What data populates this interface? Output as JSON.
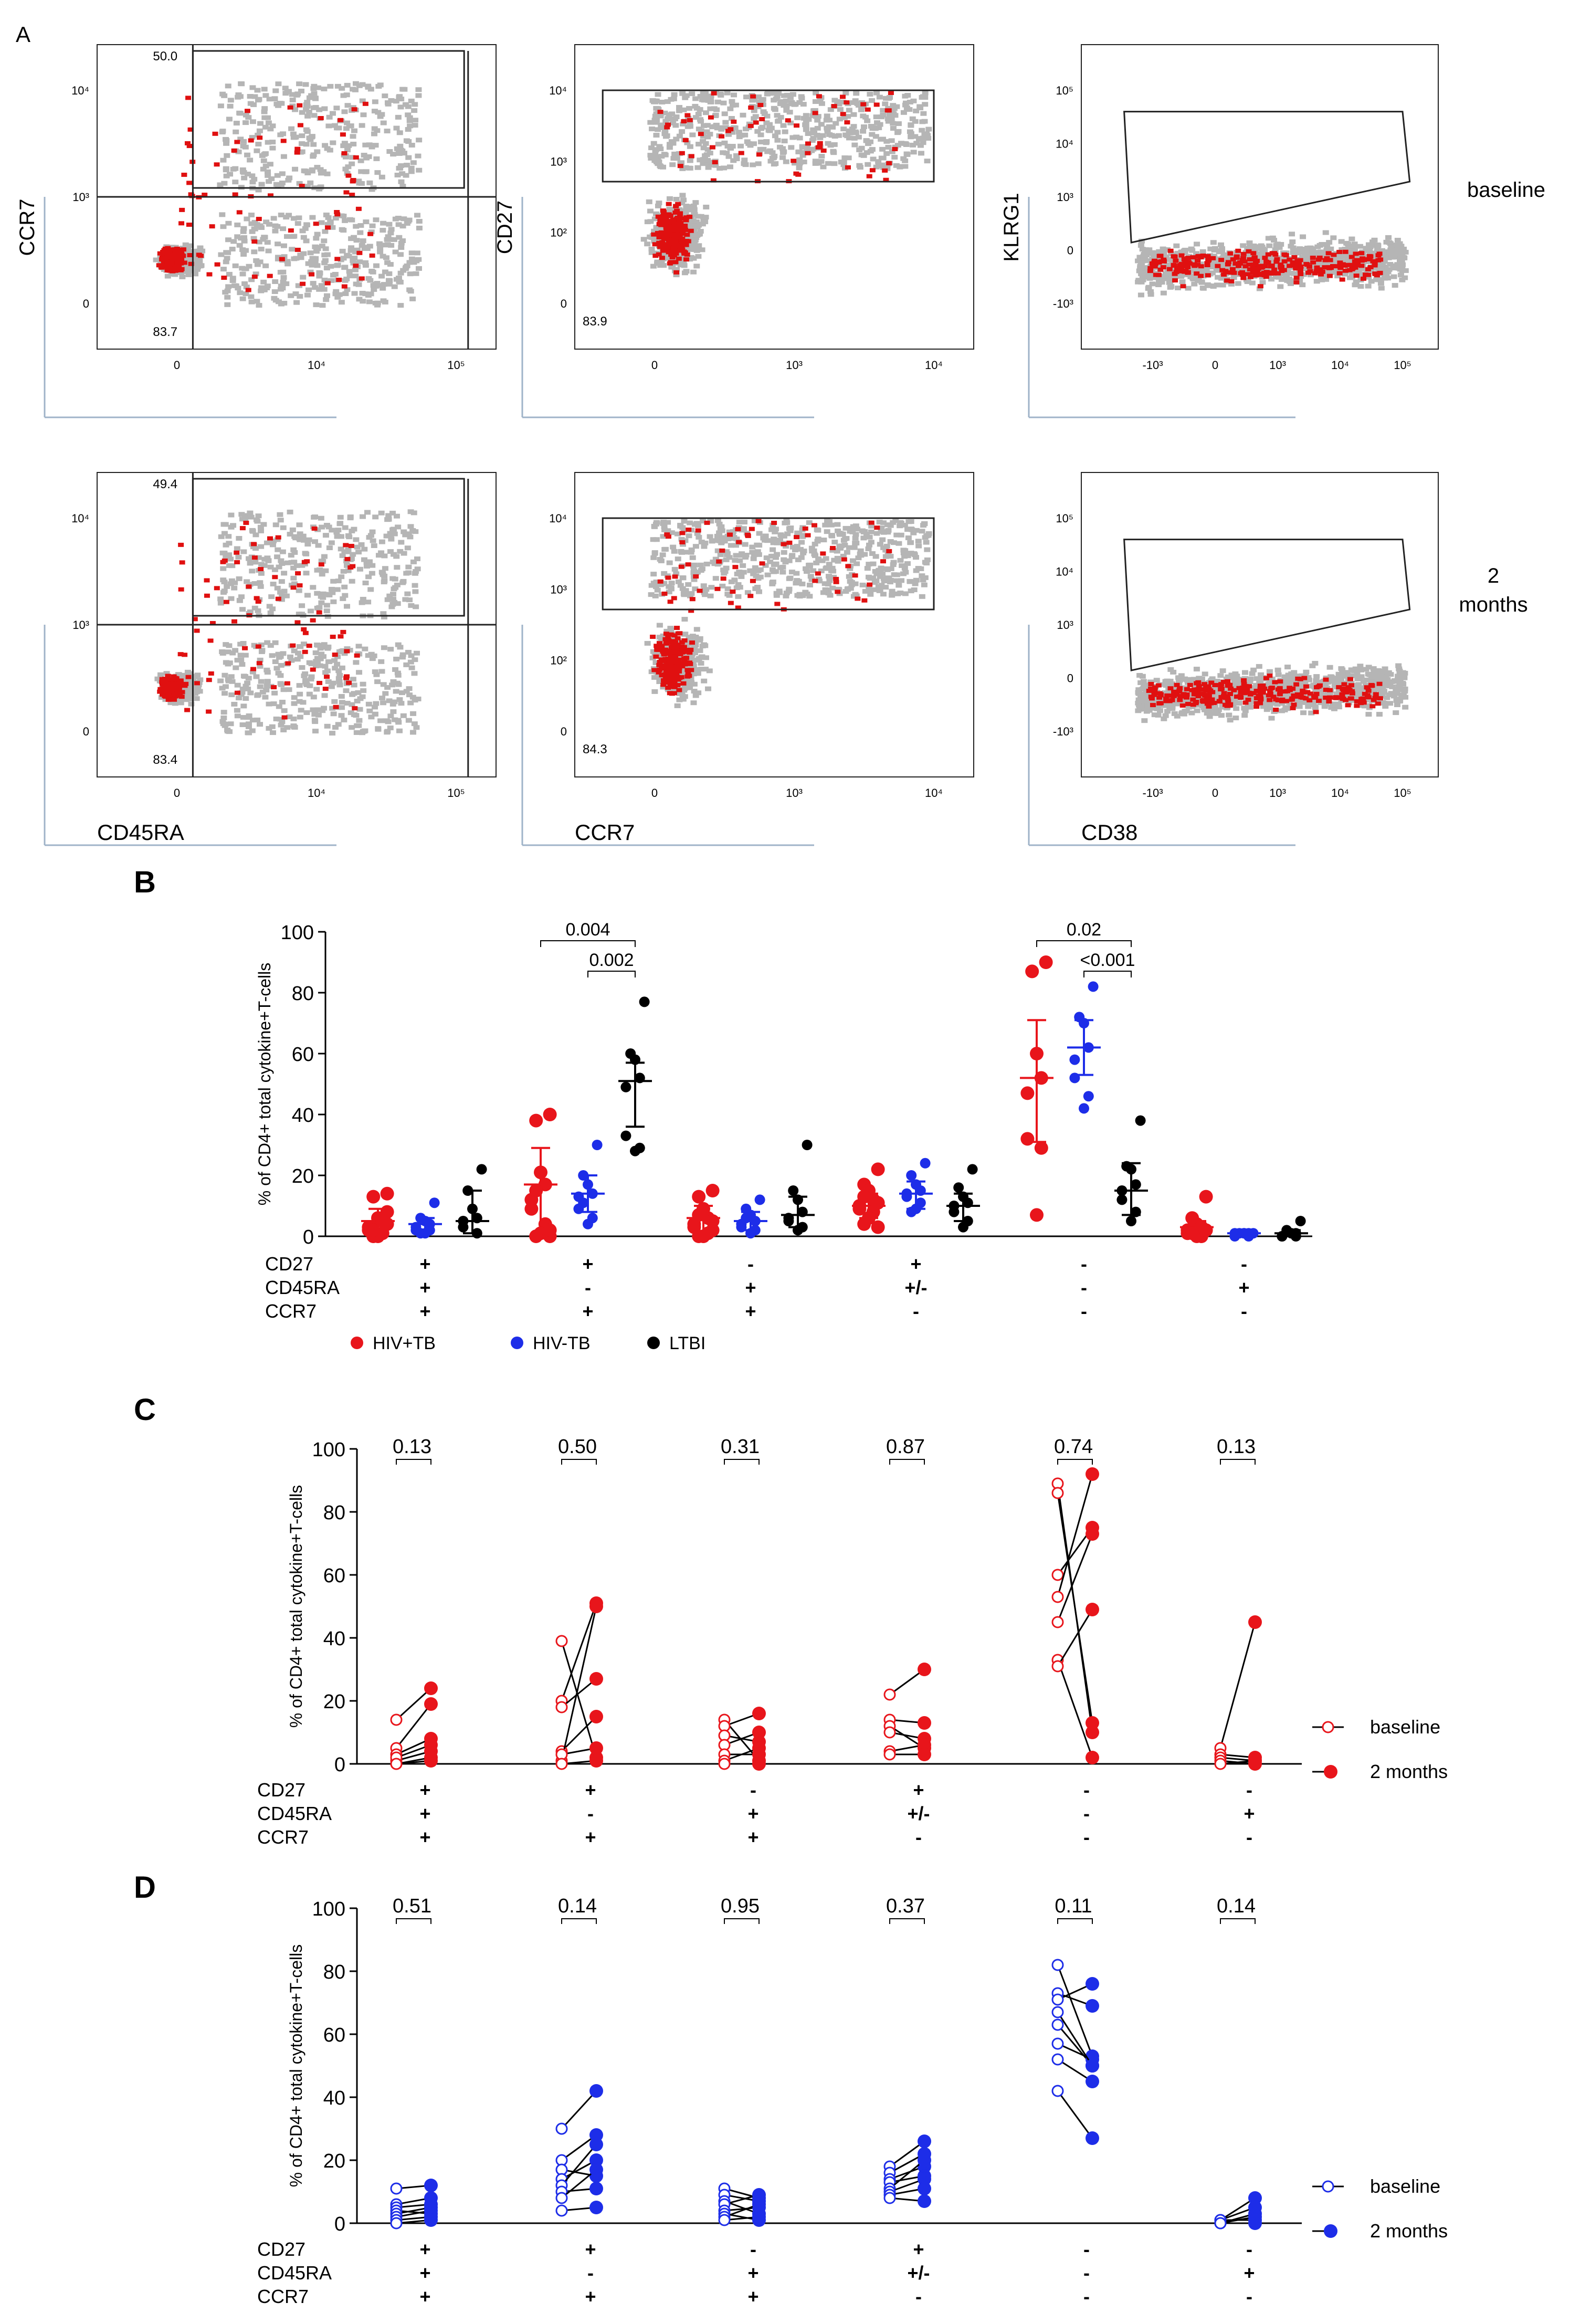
{
  "figure": {
    "panel_labels": {
      "A": "A",
      "B": "B",
      "C": "C",
      "D": "D"
    },
    "colors": {
      "hiv_tb": "#e8151b",
      "hivneg_tb": "#1d2de8",
      "ltbi": "#000000",
      "gray": "#b5b5b5",
      "red_dot": "#e01010"
    }
  },
  "panel_a": {
    "row_labels": [
      "baseline",
      "2 months"
    ],
    "plots": [
      {
        "x_label": "CD45RA",
        "y_label": "CCR7",
        "gate_values": [
          "50.0",
          "83.7"
        ]
      },
      {
        "x_label": "CCR7",
        "y_label": "CD27",
        "gate_values": [
          "83.9"
        ]
      },
      {
        "x_label": "CD38",
        "y_label": "KLRG1",
        "gate_values": []
      },
      {
        "x_label": "CD45RA",
        "y_label": "",
        "gate_values": [
          "49.4",
          "83.4"
        ]
      },
      {
        "x_label": "CCR7",
        "y_label": "",
        "gate_values": [
          "84.3"
        ]
      },
      {
        "x_label": "CD38",
        "y_label": "",
        "gate_values": []
      }
    ],
    "ticks": {
      "p1_y": [
        "10⁴",
        "10³",
        "0"
      ],
      "p1_x": [
        "0",
        "10⁴",
        "10⁵"
      ],
      "p2_y": [
        "10⁴",
        "10³",
        "10²",
        "0"
      ],
      "p2_x": [
        "0",
        "10³",
        "10⁴"
      ],
      "p3_y": [
        "10⁵",
        "10⁴",
        "10³",
        "0",
        "-10³"
      ],
      "p3_x": [
        "-10³",
        "0",
        "10³",
        "10⁴",
        "10⁵"
      ]
    }
  },
  "chart_data": [
    {
      "type": "scatter",
      "panel": "B",
      "ylabel": "% of CD4+ total cytokine+T-cells",
      "ylim": [
        0,
        100
      ],
      "yticks": [
        "0",
        "20",
        "40",
        "60",
        "80",
        "100"
      ],
      "phenotype_rows": [
        {
          "label": "CD27",
          "values": [
            "+",
            "+",
            "-",
            "+",
            "-",
            "-"
          ]
        },
        {
          "label": "CD45RA",
          "values": [
            "+",
            "-",
            "+",
            "+/-",
            "-",
            "+"
          ]
        },
        {
          "label": "CCR7",
          "values": [
            "+",
            "+",
            "+",
            "-",
            "-",
            "-"
          ]
        }
      ],
      "legend": [
        "HIV+TB",
        "HIV-TB",
        "LTBI"
      ],
      "series": [
        {
          "name": "HIV+TB",
          "groups": [
            {
              "median": 5,
              "err": [
                1,
                9
              ],
              "points": [
                14,
                13,
                6,
                5,
                3,
                2,
                1,
                0,
                0,
                4,
                8,
                2
              ]
            },
            {
              "median": 17,
              "err": [
                0,
                29
              ],
              "points": [
                40,
                38,
                21,
                17,
                12,
                9,
                4,
                1,
                0,
                0,
                2,
                15
              ]
            },
            {
              "median": 6,
              "err": [
                1,
                10
              ],
              "points": [
                15,
                13,
                9,
                6,
                4,
                3,
                1,
                0,
                0,
                2,
                5,
                7
              ]
            },
            {
              "median": 10,
              "err": [
                6,
                14
              ],
              "points": [
                22,
                17,
                15,
                12,
                10,
                9,
                8,
                6,
                4,
                3,
                11,
                13
              ]
            },
            {
              "median": 52,
              "err": [
                31,
                71
              ],
              "points": [
                90,
                87,
                60,
                52,
                47,
                32,
                29,
                7
              ]
            },
            {
              "median": 3,
              "err": [
                1,
                5
              ],
              "points": [
                13,
                6,
                4,
                3,
                2,
                1,
                0,
                0,
                1,
                2
              ]
            }
          ]
        },
        {
          "name": "HIV-TB",
          "groups": [
            {
              "median": 4,
              "err": [
                2,
                6
              ],
              "points": [
                11,
                6,
                5,
                4,
                3,
                2,
                2,
                1,
                1
              ]
            },
            {
              "median": 14,
              "err": [
                8,
                20
              ],
              "points": [
                30,
                20,
                17,
                14,
                13,
                9,
                6,
                4,
                11
              ]
            },
            {
              "median": 5,
              "err": [
                2,
                8
              ],
              "points": [
                12,
                9,
                7,
                5,
                4,
                3,
                2,
                1,
                6
              ]
            },
            {
              "median": 14,
              "err": [
                9,
                18
              ],
              "points": [
                24,
                20,
                17,
                15,
                14,
                13,
                11,
                9,
                8
              ]
            },
            {
              "median": 62,
              "err": [
                53,
                71
              ],
              "points": [
                82,
                72,
                70,
                62,
                58,
                52,
                46,
                42
              ]
            },
            {
              "median": 1,
              "err": [
                0,
                1
              ],
              "points": [
                1,
                1,
                1,
                0,
                1,
                0,
                1,
                1
              ]
            }
          ]
        },
        {
          "name": "LTBI",
          "groups": [
            {
              "median": 5,
              "err": [
                1,
                15
              ],
              "points": [
                22,
                15,
                9,
                6,
                5,
                3,
                1
              ]
            },
            {
              "median": 51,
              "err": [
                36,
                57
              ],
              "points": [
                77,
                60,
                58,
                52,
                49,
                33,
                29,
                28
              ]
            },
            {
              "median": 7,
              "err": [
                3,
                13
              ],
              "points": [
                30,
                15,
                12,
                8,
                6,
                5,
                3,
                2
              ]
            },
            {
              "median": 10,
              "err": [
                5,
                14
              ],
              "points": [
                22,
                16,
                13,
                11,
                10,
                8,
                5,
                3
              ]
            },
            {
              "median": 15,
              "err": [
                7,
                24
              ],
              "points": [
                38,
                23,
                22,
                17,
                15,
                12,
                8,
                5
              ]
            },
            {
              "median": 1,
              "err": [
                0,
                2
              ],
              "points": [
                5,
                2,
                1,
                1,
                0,
                0,
                0
              ]
            }
          ]
        }
      ],
      "brackets": [
        {
          "label": "0.004",
          "from_group": 1,
          "from_series": 0,
          "to_series": 2
        },
        {
          "label": "0.002",
          "from_group": 1,
          "from_series": 1,
          "to_series": 2
        },
        {
          "label": "0.02",
          "from_group": 4,
          "from_series": 0,
          "to_series": 2
        },
        {
          "label": "<0.001",
          "from_group": 4,
          "from_series": 1,
          "to_series": 2
        }
      ]
    },
    {
      "type": "line",
      "panel": "C",
      "ylabel": "% of CD4+ total cytokine+T-cells",
      "ylim": [
        0,
        100
      ],
      "yticks": [
        "0",
        "20",
        "40",
        "60",
        "80",
        "100"
      ],
      "color": "#e8151b",
      "p_values": [
        "0.13",
        "0.50",
        "0.31",
        "0.87",
        "0.74",
        "0.13"
      ],
      "legend": [
        "baseline",
        "2 months"
      ],
      "phenotype_rows": [
        {
          "label": "CD27",
          "values": [
            "+",
            "+",
            "-",
            "+",
            "-",
            "-"
          ]
        },
        {
          "label": "CD45RA",
          "values": [
            "+",
            "-",
            "+",
            "+/-",
            "-",
            "+"
          ]
        },
        {
          "label": "CCR7",
          "values": [
            "+",
            "+",
            "+",
            "-",
            "-",
            "-"
          ]
        }
      ],
      "groups": [
        {
          "pairs": [
            [
              14,
              24
            ],
            [
              5,
              19
            ],
            [
              3,
              8
            ],
            [
              1,
              4
            ],
            [
              0,
              1
            ],
            [
              2,
              6
            ],
            [
              0,
              2
            ]
          ]
        },
        {
          "pairs": [
            [
              39,
              2
            ],
            [
              20,
              51
            ],
            [
              18,
              27
            ],
            [
              4,
              15
            ],
            [
              1,
              50
            ],
            [
              3,
              5
            ],
            [
              0,
              1
            ]
          ]
        },
        {
          "pairs": [
            [
              14,
              1
            ],
            [
              12,
              16
            ],
            [
              9,
              7
            ],
            [
              6,
              10
            ],
            [
              3,
              3
            ],
            [
              1,
              5
            ],
            [
              0,
              0
            ]
          ]
        },
        {
          "pairs": [
            [
              22,
              30
            ],
            [
              14,
              13
            ],
            [
              12,
              5
            ],
            [
              10,
              8
            ],
            [
              4,
              6
            ],
            [
              3,
              3
            ]
          ]
        },
        {
          "pairs": [
            [
              89,
              10
            ],
            [
              86,
              13
            ],
            [
              60,
              75
            ],
            [
              53,
              92
            ],
            [
              45,
              73
            ],
            [
              33,
              2
            ],
            [
              31,
              49
            ]
          ]
        },
        {
          "pairs": [
            [
              5,
              45
            ],
            [
              3,
              2
            ],
            [
              2,
              1
            ],
            [
              1,
              0
            ],
            [
              0,
              1
            ]
          ]
        }
      ]
    },
    {
      "type": "line",
      "panel": "D",
      "ylabel": "% of CD4+ total cytokine+T-cells",
      "ylim": [
        0,
        100
      ],
      "yticks": [
        "0",
        "20",
        "40",
        "60",
        "80",
        "100"
      ],
      "color": "#1d2de8",
      "p_values": [
        "0.51",
        "0.14",
        "0.95",
        "0.37",
        "0.11",
        "0.14"
      ],
      "legend": [
        "baseline",
        "2 months"
      ],
      "phenotype_rows": [
        {
          "label": "CD27",
          "values": [
            "+",
            "+",
            "-",
            "+",
            "-",
            "-"
          ]
        },
        {
          "label": "CD45RA",
          "values": [
            "+",
            "-",
            "+",
            "+/-",
            "-",
            "+"
          ]
        },
        {
          "label": "CCR7",
          "values": [
            "+",
            "+",
            "+",
            "-",
            "-",
            "-"
          ]
        }
      ],
      "groups": [
        {
          "pairs": [
            [
              11,
              12
            ],
            [
              6,
              8
            ],
            [
              5,
              6
            ],
            [
              4,
              3
            ],
            [
              3,
              5
            ],
            [
              2,
              4
            ],
            [
              1,
              2
            ],
            [
              0,
              1
            ]
          ]
        },
        {
          "pairs": [
            [
              30,
              42
            ],
            [
              20,
              28
            ],
            [
              17,
              15
            ],
            [
              14,
              20
            ],
            [
              12,
              25
            ],
            [
              10,
              11
            ],
            [
              8,
              17
            ],
            [
              4,
              5
            ]
          ]
        },
        {
          "pairs": [
            [
              11,
              8
            ],
            [
              9,
              7
            ],
            [
              7,
              3
            ],
            [
              6,
              9
            ],
            [
              4,
              5
            ],
            [
              3,
              1
            ],
            [
              2,
              6
            ],
            [
              1,
              2
            ]
          ]
        },
        {
          "pairs": [
            [
              18,
              26
            ],
            [
              16,
              22
            ],
            [
              14,
              18
            ],
            [
              13,
              15
            ],
            [
              11,
              20
            ],
            [
              10,
              14
            ],
            [
              9,
              11
            ],
            [
              8,
              7
            ]
          ]
        },
        {
          "pairs": [
            [
              82,
              53
            ],
            [
              73,
              69
            ],
            [
              71,
              76
            ],
            [
              63,
              50
            ],
            [
              57,
              52
            ],
            [
              52,
              45
            ],
            [
              42,
              27
            ],
            [
              67,
              50
            ]
          ]
        },
        {
          "pairs": [
            [
              1,
              8
            ],
            [
              1,
              5
            ],
            [
              0,
              3
            ],
            [
              1,
              1
            ],
            [
              0,
              2
            ],
            [
              0,
              0
            ]
          ]
        }
      ]
    }
  ]
}
